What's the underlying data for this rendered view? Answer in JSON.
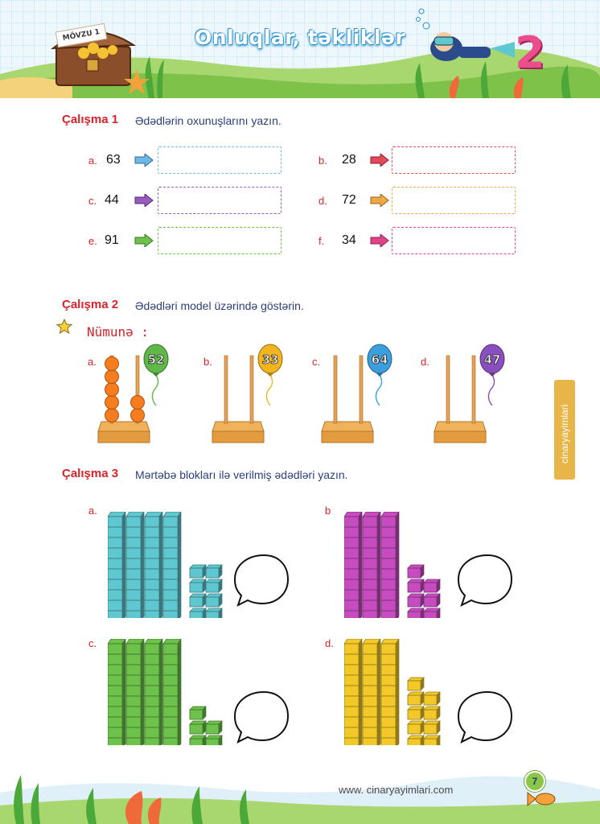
{
  "header": {
    "title": "Onluqlar, təkliklər",
    "ribbon": "MÖVZU 1",
    "topic_number": "2"
  },
  "exercise1": {
    "label": "Çalışma 1",
    "instruction": "Ədədlərin oxunuşlarını yazın.",
    "items": [
      {
        "letter": "a.",
        "number": "63",
        "color": "#6fb7e5"
      },
      {
        "letter": "b.",
        "number": "28",
        "color": "#e24a5a"
      },
      {
        "letter": "c.",
        "number": "44",
        "color": "#9a5bbf"
      },
      {
        "letter": "d.",
        "number": "72",
        "color": "#f0a845"
      },
      {
        "letter": "e.",
        "number": "91",
        "color": "#6cc24a"
      },
      {
        "letter": "f.",
        "number": "34",
        "color": "#e0458c"
      }
    ]
  },
  "exercise2": {
    "label": "Çalışma 2",
    "instruction": "Ədədləri model üzərində göstərin.",
    "example_label": "Nümunə :",
    "items": [
      {
        "letter": "a.",
        "balloon": "52",
        "color": "#5fb848",
        "tens": 5,
        "ones": 2
      },
      {
        "letter": "b.",
        "balloon": "33",
        "color": "#f2b51f",
        "tens": 0,
        "ones": 0
      },
      {
        "letter": "c.",
        "balloon": "64",
        "color": "#3a9fdc",
        "tens": 0,
        "ones": 0
      },
      {
        "letter": "d.",
        "balloon": "47",
        "color": "#8a4fbf",
        "tens": 0,
        "ones": 0
      }
    ]
  },
  "exercise3": {
    "label": "Çalışma 3",
    "instruction": "Mərtəbə blokları ilə verilmiş ədədləri yazın.",
    "items": [
      {
        "letter": "a.",
        "color": "#5fc7cf",
        "tens": 4,
        "ones": 8
      },
      {
        "letter": "b",
        "color": "#c64cc0",
        "tens": 3,
        "ones": 7
      },
      {
        "letter": "c.",
        "color": "#6cc24a",
        "tens": 4,
        "ones": 5
      },
      {
        "letter": "d.",
        "color": "#f2c928",
        "tens": 3,
        "ones": 9
      }
    ]
  },
  "sidebar": {
    "brand": "cinaryayimlari"
  },
  "footer": {
    "url": "www. cinaryayimlari.com",
    "page": "7"
  }
}
